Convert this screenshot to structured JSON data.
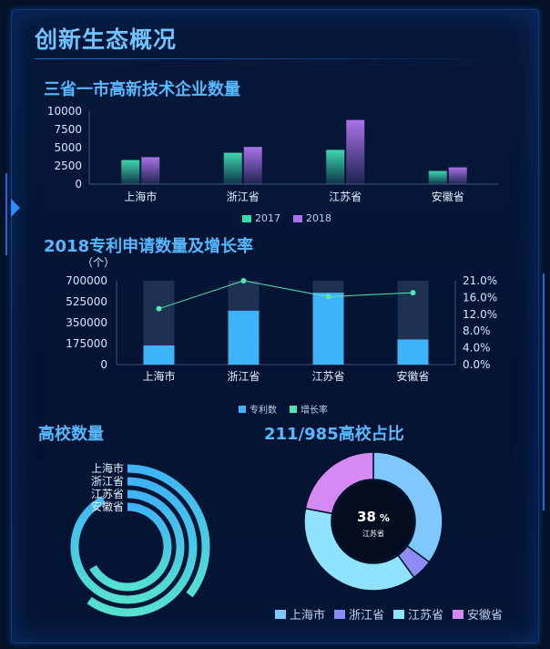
{
  "page_title": "创新生态概况",
  "colors": {
    "c2017": "#3fd8b0",
    "c2018": "#a972e8",
    "patent": "#3fb3f7",
    "patentBg": "#1d3150",
    "growth": "#52e6b4",
    "shanghai": "#7ec8ff",
    "zhejiang": "#8d8cf5",
    "jiangsu": "#8fe3ff",
    "anhui": "#d48af2",
    "ring": "#3fb3f7",
    "ringEnd": "#55e0d0"
  },
  "chart_data": [
    {
      "type": "bar",
      "title": "三省一市高新技术企业数量",
      "categories": [
        "上海市",
        "浙江省",
        "江苏省",
        "安徽省"
      ],
      "series": [
        {
          "name": "2017",
          "values": [
            3300,
            4300,
            4700,
            1800
          ]
        },
        {
          "name": "2018",
          "values": [
            3700,
            5100,
            8800,
            2300
          ]
        }
      ],
      "yticks": [
        0,
        2500,
        5000,
        7500,
        10000
      ],
      "ylim": [
        0,
        10000
      ],
      "legend": "bottom"
    },
    {
      "type": "bar",
      "title": "2018专利申请数量及增长率",
      "unit": "（个）",
      "categories": [
        "上海市",
        "浙江省",
        "江苏省",
        "安徽省"
      ],
      "series": [
        {
          "name": "专利数",
          "values": [
            160000,
            450000,
            600000,
            210000
          ]
        },
        {
          "name": "增长率",
          "type": "line",
          "values": [
            14.0,
            21.0,
            17.0,
            18.0
          ]
        }
      ],
      "max_bar": 700000,
      "yticks": [
        0,
        175000,
        350000,
        525000,
        700000
      ],
      "y2ticks": [
        "0.0%",
        "4.0%",
        "8.0%",
        "12.0%",
        "16.0%",
        "21.0%"
      ],
      "y2lim": [
        0,
        21
      ],
      "legend": "bottom"
    },
    {
      "type": "pie",
      "title": "高校数量",
      "variant": "radial-bar",
      "categories": [
        "上海市",
        "浙江省",
        "江苏省",
        "安徽省"
      ],
      "values": [
        64,
        108,
        167,
        120
      ]
    },
    {
      "type": "pie",
      "title": "211/985高校占比",
      "variant": "donut",
      "categories": [
        "上海市",
        "浙江省",
        "江苏省",
        "安徽省"
      ],
      "values": [
        35,
        5,
        38,
        22
      ],
      "center_value": "38",
      "center_unit": "%",
      "center_label": "江苏省",
      "legend": "bottom"
    }
  ]
}
